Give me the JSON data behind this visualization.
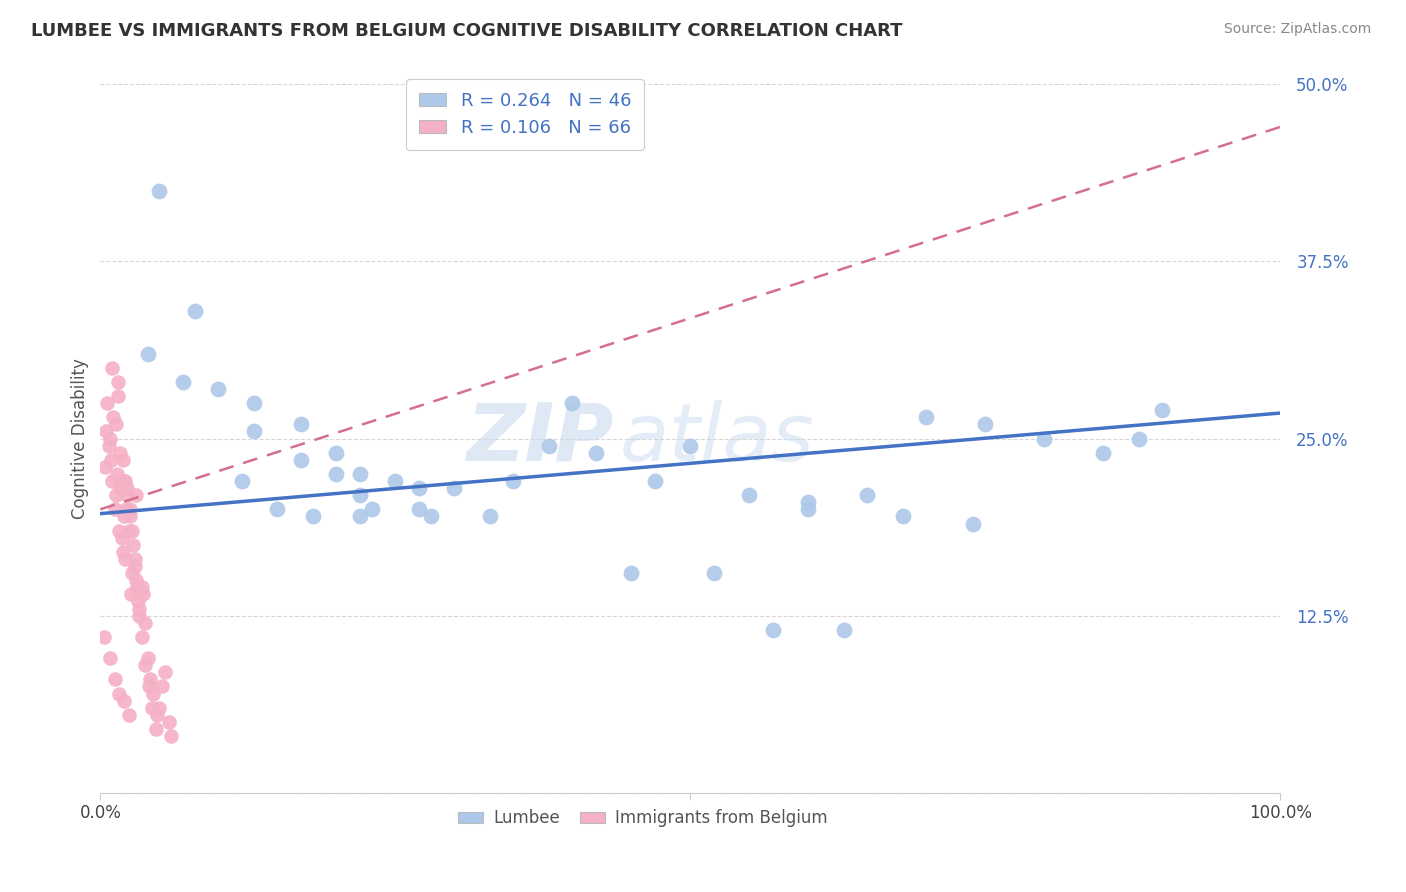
{
  "title": "LUMBEE VS IMMIGRANTS FROM BELGIUM COGNITIVE DISABILITY CORRELATION CHART",
  "source": "Source: ZipAtlas.com",
  "ylabel": "Cognitive Disability",
  "xlim": [
    0,
    1.0
  ],
  "ylim": [
    0,
    0.5
  ],
  "yticks": [
    0.0,
    0.125,
    0.25,
    0.375,
    0.5
  ],
  "ytick_labels": [
    "",
    "12.5%",
    "25.0%",
    "37.5%",
    "50.0%"
  ],
  "lumbee_R": 0.264,
  "lumbee_N": 46,
  "belgium_R": 0.106,
  "belgium_N": 66,
  "lumbee_color": "#adc8e8",
  "lumbee_line_color": "#4472c4",
  "belgium_color": "#f4b0c4",
  "belgium_line_color": "#d4708a",
  "lumbee_scatter_x": [
    0.04,
    0.07,
    0.1,
    0.13,
    0.13,
    0.17,
    0.17,
    0.2,
    0.2,
    0.22,
    0.22,
    0.22,
    0.25,
    0.27,
    0.27,
    0.3,
    0.35,
    0.38,
    0.42,
    0.47,
    0.5,
    0.55,
    0.6,
    0.6,
    0.65,
    0.7,
    0.75,
    0.8,
    0.85,
    0.9,
    0.05,
    0.08,
    0.12,
    0.15,
    0.18,
    0.23,
    0.28,
    0.33,
    0.4,
    0.45,
    0.52,
    0.57,
    0.63,
    0.68,
    0.74,
    0.88
  ],
  "lumbee_scatter_y": [
    0.31,
    0.29,
    0.285,
    0.275,
    0.255,
    0.26,
    0.235,
    0.24,
    0.225,
    0.225,
    0.21,
    0.195,
    0.22,
    0.215,
    0.2,
    0.215,
    0.22,
    0.245,
    0.24,
    0.22,
    0.245,
    0.21,
    0.205,
    0.2,
    0.21,
    0.265,
    0.26,
    0.25,
    0.24,
    0.27,
    0.425,
    0.34,
    0.22,
    0.2,
    0.195,
    0.2,
    0.195,
    0.195,
    0.275,
    0.155,
    0.155,
    0.115,
    0.115,
    0.195,
    0.19,
    0.25
  ],
  "belgium_scatter_x": [
    0.004,
    0.006,
    0.008,
    0.01,
    0.01,
    0.012,
    0.013,
    0.014,
    0.015,
    0.016,
    0.017,
    0.018,
    0.019,
    0.02,
    0.02,
    0.021,
    0.022,
    0.023,
    0.024,
    0.025,
    0.026,
    0.027,
    0.028,
    0.029,
    0.03,
    0.03,
    0.032,
    0.033,
    0.035,
    0.036,
    0.038,
    0.04,
    0.042,
    0.045,
    0.048,
    0.05,
    0.052,
    0.055,
    0.058,
    0.06,
    0.005,
    0.007,
    0.009,
    0.011,
    0.013,
    0.015,
    0.017,
    0.019,
    0.021,
    0.023,
    0.025,
    0.027,
    0.029,
    0.031,
    0.033,
    0.035,
    0.038,
    0.041,
    0.044,
    0.047,
    0.003,
    0.008,
    0.012,
    0.016,
    0.02,
    0.024
  ],
  "belgium_scatter_y": [
    0.23,
    0.275,
    0.25,
    0.22,
    0.3,
    0.2,
    0.21,
    0.225,
    0.28,
    0.185,
    0.215,
    0.18,
    0.17,
    0.195,
    0.22,
    0.165,
    0.2,
    0.215,
    0.185,
    0.195,
    0.14,
    0.155,
    0.175,
    0.16,
    0.15,
    0.21,
    0.135,
    0.125,
    0.145,
    0.14,
    0.12,
    0.095,
    0.08,
    0.07,
    0.055,
    0.06,
    0.075,
    0.085,
    0.05,
    0.04,
    0.255,
    0.245,
    0.235,
    0.265,
    0.26,
    0.29,
    0.24,
    0.235,
    0.22,
    0.21,
    0.2,
    0.185,
    0.165,
    0.145,
    0.13,
    0.11,
    0.09,
    0.075,
    0.06,
    0.045,
    0.11,
    0.095,
    0.08,
    0.07,
    0.065,
    0.055
  ],
  "lumbee_line_x0": 0.0,
  "lumbee_line_y0": 0.197,
  "lumbee_line_x1": 1.0,
  "lumbee_line_y1": 0.268,
  "belgium_line_x0": 0.0,
  "belgium_line_y0": 0.2,
  "belgium_line_x1": 1.0,
  "belgium_line_y1": 0.47,
  "watermark_zip": "ZIP",
  "watermark_atlas": "atlas",
  "background_color": "#ffffff",
  "grid_color": "#d8d8d8"
}
